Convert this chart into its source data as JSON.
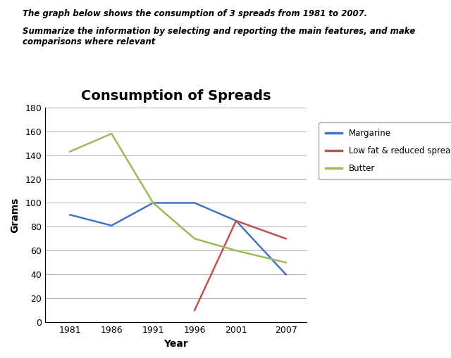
{
  "title": "Consumption of Spreads",
  "xlabel": "Year",
  "ylabel": "Grams",
  "years": [
    1981,
    1986,
    1991,
    1996,
    2001,
    2007
  ],
  "margarine": [
    90,
    81,
    100,
    100,
    85,
    40
  ],
  "lowfat_years": [
    1996,
    2001,
    2007
  ],
  "lowfat_vals": [
    10,
    85,
    70
  ],
  "butter": [
    143,
    158,
    100,
    70,
    60,
    50
  ],
  "margarine_color": "#4472C4",
  "lowfat_color": "#C0504D",
  "butter_color": "#9BBB59",
  "ylim": [
    0,
    180
  ],
  "yticks": [
    0,
    20,
    40,
    60,
    80,
    100,
    120,
    140,
    160,
    180
  ],
  "xticks": [
    1981,
    1986,
    1991,
    1996,
    2001,
    2007
  ],
  "linewidth": 1.8,
  "markersize": 0,
  "title_fontsize": 14,
  "axis_label_fontsize": 10,
  "tick_fontsize": 9,
  "legend_labels": [
    "Margarine",
    "Low fat & reduced spreads",
    "Butter"
  ],
  "header_line1": "The graph below shows the consumption of 3 spreads from 1981 to 2007.",
  "header_line2": "Summarize the information by selecting and reporting the main features, and make\ncomparisons where relevant",
  "background_color": "#ffffff",
  "plot_bg_color": "#ffffff",
  "grid_color": "#b0b0b0"
}
